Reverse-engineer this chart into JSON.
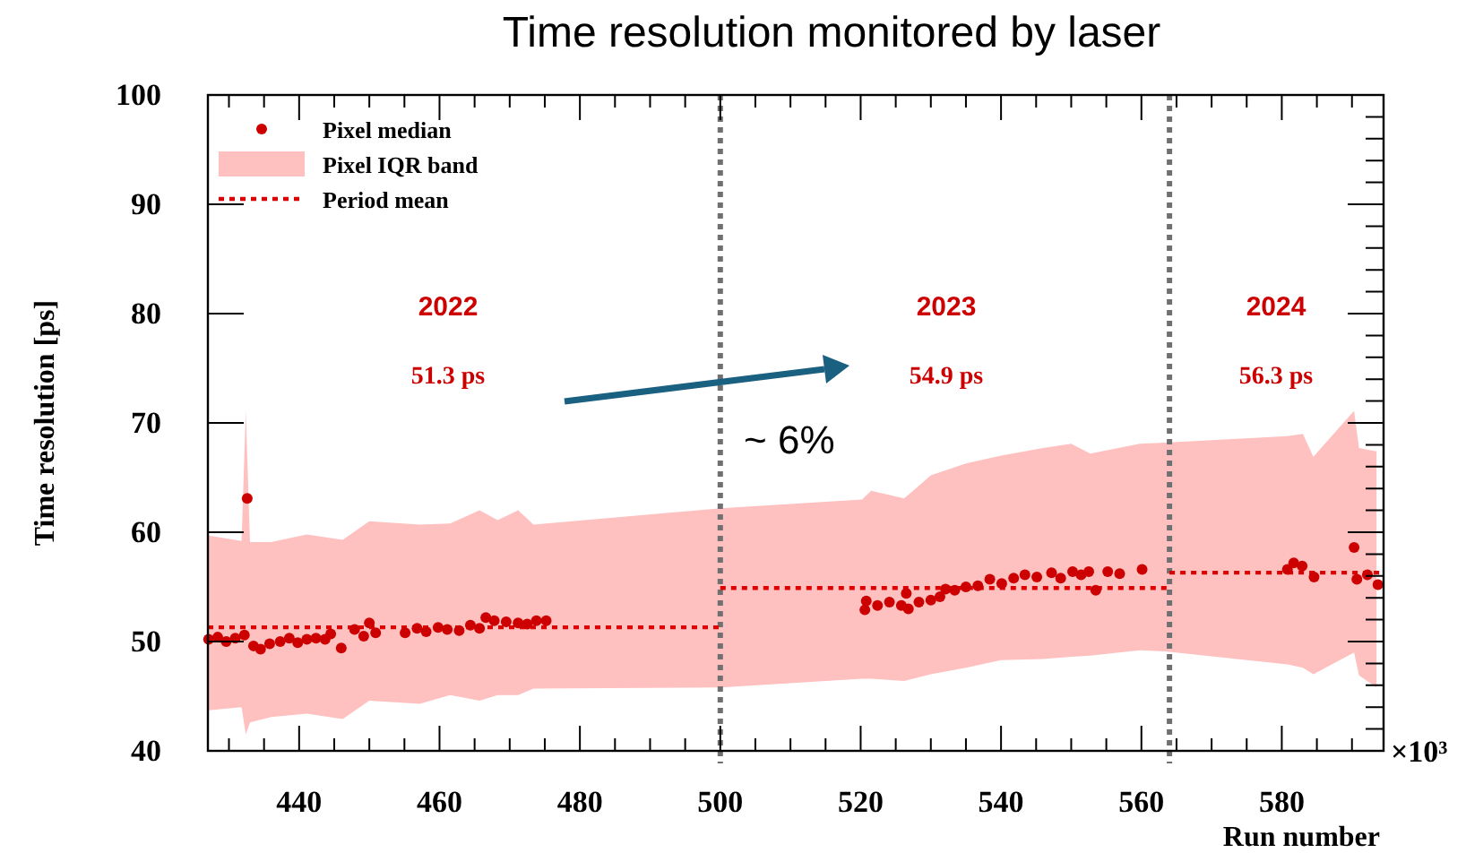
{
  "chart_data": {
    "type": "scatter",
    "title": "Time resolution monitored by laser",
    "xlabel": "Run number",
    "ylabel": "Time resolution [ps]",
    "xlim": [
      427,
      594.5
    ],
    "ylim": [
      40,
      100
    ],
    "xticks": [
      440,
      460,
      480,
      500,
      520,
      540,
      560,
      580
    ],
    "yticks": [
      40,
      50,
      60,
      70,
      80,
      90,
      100
    ],
    "legend": "top left",
    "grid": false,
    "series": [
      {
        "name": "Pixel median",
        "type": "scatter",
        "marker": "circle",
        "color": "#cc0000",
        "x": [
          427.1,
          428.4,
          429.6,
          430.9,
          432.2,
          432.6,
          433.5,
          434.5,
          435.8,
          437.3,
          438.6,
          439.8,
          441.1,
          442.4,
          443.7,
          444.5,
          446.0,
          447.9,
          449.2,
          450.0,
          450.9,
          455.1,
          456.8,
          458.1,
          459.8,
          461.1,
          462.8,
          464.4,
          465.7,
          466.6,
          467.8,
          469.5,
          471.2,
          472.5,
          473.8,
          475.2,
          520.6,
          520.8,
          522.4,
          524.1,
          525.8,
          526.5,
          526.8,
          528.3,
          530,
          531.3,
          532.1,
          533.4,
          535,
          536.7,
          538.4,
          540.1,
          541.8,
          543.4,
          545.1,
          547.2,
          548.5,
          550.2,
          551.4,
          552.5,
          553.5,
          555.2,
          556.9,
          560.1,
          580.8,
          581.7,
          582.9,
          584.6,
          590.3,
          590.7,
          592.2,
          593.7
        ],
        "values": [
          50.2,
          50.4,
          50.0,
          50.3,
          50.6,
          63.1,
          49.6,
          49.3,
          49.8,
          50.0,
          50.3,
          49.9,
          50.2,
          50.3,
          50.2,
          50.7,
          49.4,
          51.1,
          50.5,
          51.7,
          50.8,
          50.8,
          51.2,
          50.9,
          51.3,
          51.1,
          51.0,
          51.5,
          51.2,
          52.2,
          51.9,
          51.8,
          51.7,
          51.6,
          51.9,
          51.9,
          52.9,
          53.7,
          53.3,
          53.6,
          53.3,
          54.4,
          53.0,
          53.6,
          53.8,
          54.1,
          54.8,
          54.7,
          55,
          55.1,
          55.7,
          55.3,
          55.8,
          56.1,
          55.9,
          56.3,
          55.8,
          56.4,
          56.1,
          56.4,
          54.7,
          56.4,
          56.2,
          56.6,
          56.6,
          57.2,
          56.9,
          55.9,
          58.6,
          55.7,
          56.1,
          55.2
        ]
      },
      {
        "name": "Pixel IQR band",
        "type": "area",
        "color": "#ffc0c0",
        "x": [
          427.1,
          431.8,
          432.4,
          433,
          436,
          441.1,
          446.2,
          450,
          457.2,
          461.5,
          465.7,
          468.3,
          471.2,
          473.4,
          500.1,
          520.2,
          521.5,
          526.2,
          530,
          535,
          540,
          546,
          550,
          552.7,
          559.8,
          563.4,
          580.8,
          583,
          584.5,
          590.3,
          591,
          593.5
        ],
        "lower": [
          43.7,
          44,
          41.5,
          42.6,
          43.1,
          43.4,
          42.9,
          44.6,
          44.3,
          45.1,
          44.6,
          45.1,
          45.1,
          45.7,
          45.8,
          46.6,
          46.6,
          46.4,
          47,
          47.6,
          48.3,
          48.4,
          48.6,
          48.7,
          49.2,
          49.1,
          47.9,
          47.6,
          47,
          49,
          46.9,
          45.8
        ],
        "values": [
          null,
          null,
          null,
          null,
          null,
          null,
          null,
          null,
          null,
          null,
          null,
          null,
          null,
          null,
          null,
          null,
          null,
          null,
          null,
          null,
          null,
          null,
          null,
          null,
          null,
          null,
          null,
          null,
          null,
          null,
          null,
          null
        ],
        "upper": [
          59.7,
          59.2,
          71.1,
          59.1,
          59.1,
          59.8,
          59.3,
          61,
          60.7,
          60.8,
          62,
          61.1,
          62,
          60.7,
          62.2,
          63,
          63.8,
          63.1,
          65.2,
          66.3,
          67,
          67.7,
          68.1,
          67.2,
          68.1,
          68.2,
          68.8,
          69,
          66.9,
          71.1,
          67.7,
          67.4
        ]
      },
      {
        "name": "Period mean",
        "type": "line",
        "line_style": "dotted",
        "color": "#dd0000",
        "x": [
          427,
          500,
          null,
          500,
          564,
          null,
          564,
          594.5
        ],
        "values": [
          51.3,
          51.3,
          null,
          54.9,
          54.9,
          null,
          56.3,
          56.3
        ]
      }
    ],
    "ref_lines": [
      {
        "axis": "x",
        "value": 500,
        "color": "#707070",
        "line_style": "dotted"
      },
      {
        "axis": "x",
        "value": 564,
        "color": "#707070",
        "line_style": "dotted"
      }
    ],
    "annotations": [
      "2022",
      "51.3 ps",
      "2023",
      "54.9 ps",
      "2024",
      "56.3 ps",
      "~ 6%",
      "×10³"
    ]
  }
}
